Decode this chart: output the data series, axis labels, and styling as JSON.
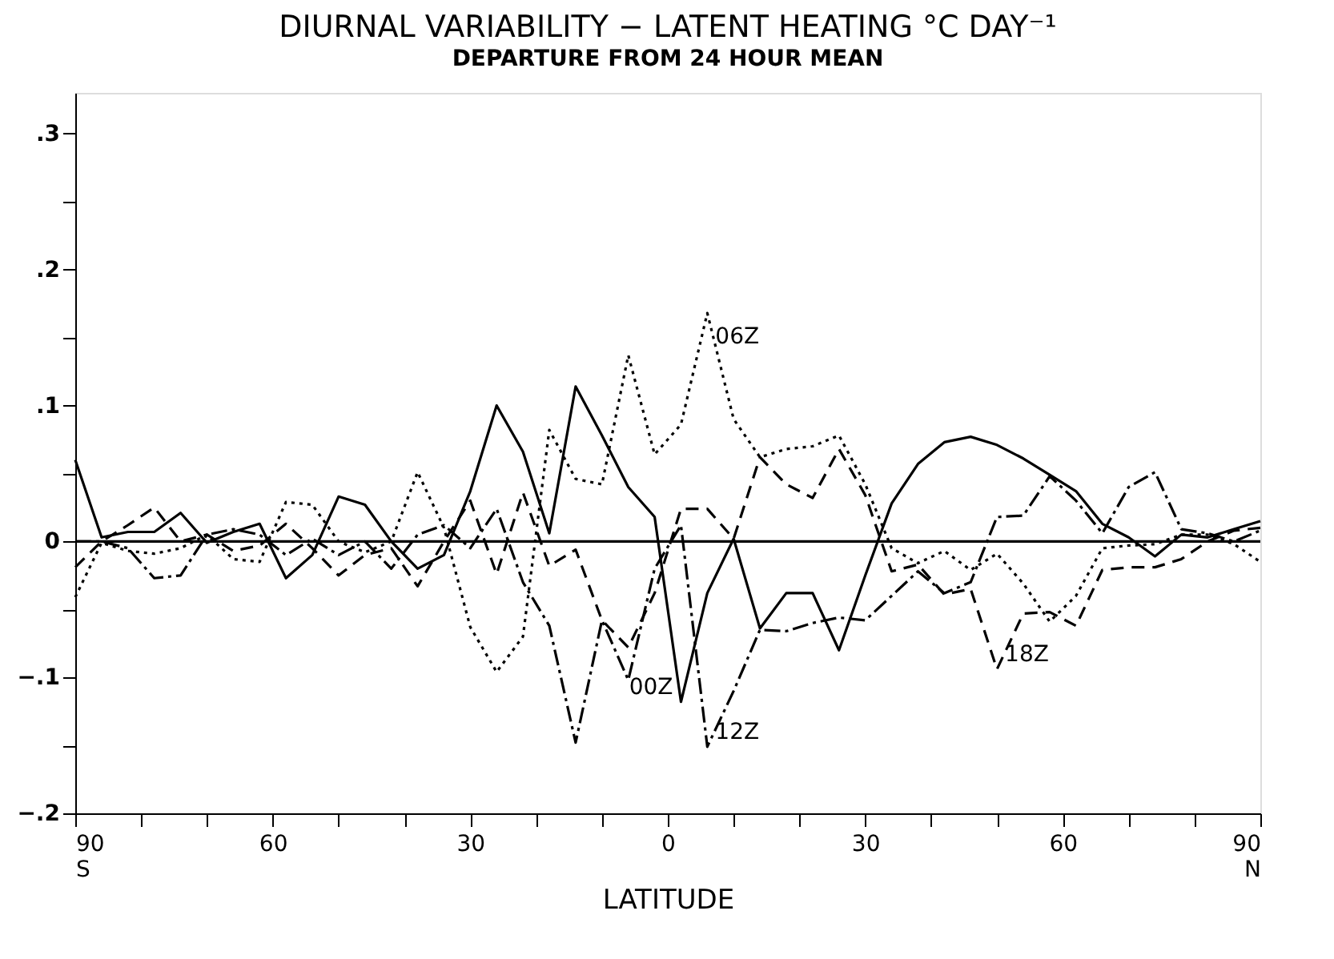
{
  "chart_data": {
    "type": "line",
    "title": "DIURNAL VARIABILITY − LATENT HEATING      °C DAY⁻¹",
    "subtitle": "DEPARTURE FROM 24 HOUR MEAN",
    "xlabel": "LATITUDE",
    "x": [
      -90,
      -86,
      -82,
      -78,
      -74,
      -70,
      -66,
      -62,
      -58,
      -54,
      -50,
      -46,
      -42,
      -38,
      -34,
      -30,
      -26,
      -22,
      -18,
      -14,
      -10,
      -6,
      -2,
      2,
      6,
      10,
      14,
      18,
      22,
      26,
      30,
      34,
      38,
      42,
      46,
      50,
      54,
      58,
      62,
      66,
      70,
      74,
      78,
      82,
      86,
      90
    ],
    "series": [
      {
        "name": "00Z",
        "color": "#000000",
        "line_style": "solid",
        "values": [
          0.06,
          0.003,
          0.007,
          0.007,
          0.021,
          -0.001,
          0.007,
          0.013,
          -0.027,
          -0.01,
          0.033,
          0.027,
          0.0,
          -0.02,
          -0.01,
          0.037,
          0.1,
          0.066,
          0.006,
          0.114,
          0.078,
          0.04,
          0.018,
          -0.118,
          -0.038,
          0.002,
          -0.064,
          -0.038,
          -0.038,
          -0.08,
          -0.025,
          0.028,
          0.057,
          0.073,
          0.077,
          0.071,
          0.061,
          0.049,
          0.037,
          0.013,
          0.003,
          -0.011,
          0.005,
          0.003,
          0.009,
          0.015
        ]
      },
      {
        "name": "06Z",
        "color": "#000000",
        "line_style": "dotted",
        "values": [
          -0.041,
          -0.001,
          -0.007,
          -0.009,
          -0.005,
          0.005,
          -0.013,
          -0.015,
          0.029,
          0.027,
          0.0,
          -0.008,
          0.0,
          0.051,
          0.01,
          -0.063,
          -0.096,
          -0.07,
          0.082,
          0.046,
          0.042,
          0.137,
          0.064,
          0.086,
          0.168,
          0.09,
          0.062,
          0.068,
          0.07,
          0.078,
          0.042,
          -0.005,
          -0.016,
          -0.007,
          -0.021,
          -0.009,
          -0.031,
          -0.059,
          -0.04,
          -0.005,
          -0.003,
          -0.002,
          0.005,
          0.005,
          -0.002,
          -0.015
        ]
      },
      {
        "name": "12Z",
        "color": "#000000",
        "line_style": "dashdot",
        "values": [
          0.0,
          0.0,
          -0.005,
          -0.027,
          -0.025,
          0.005,
          0.009,
          0.005,
          -0.01,
          0.002,
          -0.01,
          0.0,
          -0.02,
          0.005,
          0.012,
          -0.005,
          0.024,
          -0.03,
          -0.062,
          -0.148,
          -0.058,
          -0.102,
          -0.02,
          0.012,
          -0.151,
          -0.11,
          -0.065,
          -0.066,
          -0.06,
          -0.056,
          -0.058,
          -0.04,
          -0.022,
          -0.038,
          -0.03,
          0.018,
          0.019,
          0.048,
          0.03,
          0.006,
          0.04,
          0.051,
          0.009,
          0.006,
          0.0,
          0.008
        ]
      },
      {
        "name": "18Z",
        "color": "#000000",
        "line_style": "dashed",
        "values": [
          -0.019,
          0.0,
          0.012,
          0.025,
          0.0,
          0.005,
          -0.007,
          -0.003,
          0.013,
          -0.005,
          -0.025,
          -0.01,
          -0.005,
          -0.033,
          0.0,
          0.03,
          -0.024,
          0.036,
          -0.018,
          -0.006,
          -0.058,
          -0.078,
          -0.038,
          0.024,
          0.024,
          0.002,
          0.062,
          0.042,
          0.032,
          0.068,
          0.034,
          -0.022,
          -0.017,
          -0.039,
          -0.035,
          -0.094,
          -0.053,
          -0.052,
          -0.062,
          -0.021,
          -0.019,
          -0.019,
          -0.013,
          0.0,
          0.008,
          0.01
        ]
      }
    ],
    "xlim": [
      -90,
      90
    ],
    "xticks": [
      {
        "value": -90,
        "label": "90\nS"
      },
      {
        "value": -80,
        "label": null
      },
      {
        "value": -70,
        "label": null
      },
      {
        "value": -60,
        "label": "60"
      },
      {
        "value": -50,
        "label": null
      },
      {
        "value": -40,
        "label": null
      },
      {
        "value": -30,
        "label": "30"
      },
      {
        "value": -20,
        "label": null
      },
      {
        "value": -10,
        "label": null
      },
      0,
      {
        "value": 10,
        "label": null
      },
      {
        "value": 20,
        "label": null
      },
      {
        "value": 30,
        "label": "30"
      },
      {
        "value": 40,
        "label": null
      },
      {
        "value": 50,
        "label": null
      },
      {
        "value": 60,
        "label": "60"
      },
      {
        "value": 70,
        "label": null
      },
      {
        "value": 80,
        "label": null
      },
      {
        "value": 90,
        "label": "90\nN"
      }
    ],
    "ylim": [
      -0.2,
      0.33
    ],
    "yticks": [
      {
        "value": -0.2,
        "label": "−.2"
      },
      {
        "value": -0.15,
        "label": null
      },
      {
        "value": -0.1,
        "label": "−.1"
      },
      {
        "value": -0.05,
        "label": null
      },
      0,
      {
        "value": 0.05,
        "label": null
      },
      {
        "value": 0.1,
        "label": ".1"
      },
      {
        "value": 0.15,
        "label": null
      },
      {
        "value": 0.2,
        "label": ".2"
      },
      {
        "value": 0.25,
        "label": null
      },
      {
        "value": 0.3,
        "label": ".3"
      }
    ],
    "ref_lines": [
      {
        "axis": "y",
        "value": 0,
        "label": null,
        "color": "#000000",
        "line_style": "solid"
      }
    ],
    "grid": false,
    "marker": "none"
  }
}
